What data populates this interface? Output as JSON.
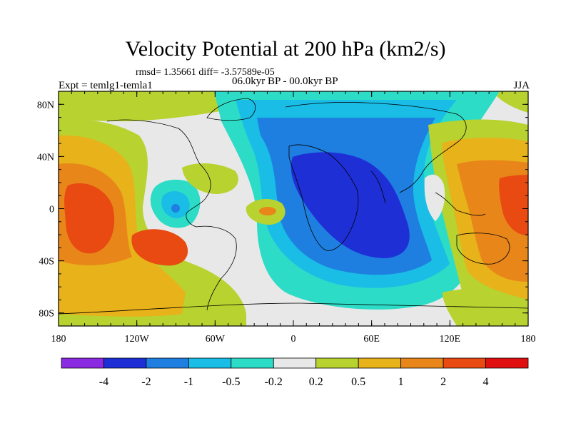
{
  "title": "Velocity Potential at 200 hPa (km2/s)",
  "stats": "rmsd= 1.35661 diff= -3.57589e-05",
  "period": "06.0kyr BP - 00.0kyr BP",
  "experiment": "Expt = temlg1-temla1",
  "season": "JJA",
  "longitude_ticks": [
    "180",
    "120W",
    "60W",
    "0",
    "60E",
    "120E",
    "180"
  ],
  "latitude_ticks": [
    "80N",
    "40N",
    "0",
    "40S",
    "80S"
  ],
  "colorbar": {
    "labels": [
      "-4",
      "-2",
      "-1",
      "-0.5",
      "-0.2",
      "0.2",
      "0.5",
      "1",
      "2",
      "4"
    ],
    "colors": [
      "#8a2be2",
      "#1e2fd6",
      "#1e7fe0",
      "#19bde6",
      "#2ddcc6",
      "#e8e8e8",
      "#b8d230",
      "#e8b21a",
      "#e8861a",
      "#e84a12",
      "#e01010"
    ]
  }
}
